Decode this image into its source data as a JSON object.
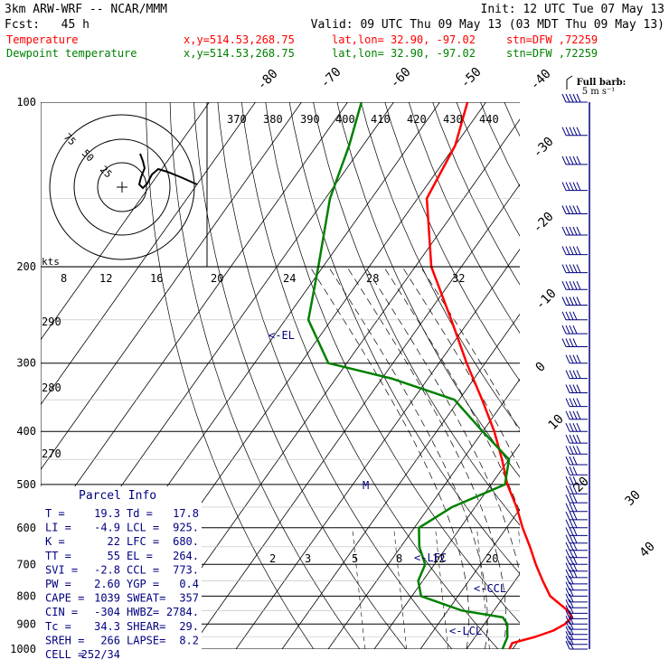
{
  "header": {
    "model": "3km ARW-WRF -- NCAR/MMM",
    "init": "Init: 12 UTC Tue 07 May 13",
    "fcst": "Fcst:   45 h",
    "valid": "Valid: 09 UTC Thu 09 May 13 (03 MDT Thu 09 May 13)",
    "temp_line": {
      "label": "Temperature",
      "xy": "x,y=514.53,268.75",
      "latlon": "lat,lon= 32.90, -97.02",
      "stn": "stn=DFW ,72259"
    },
    "dew_line": {
      "label": "Dewpoint temperature",
      "xy": "x,y=514.53,268.75",
      "latlon": "lat,lon= 32.90, -97.02",
      "stn": "stn=DFW ,72259"
    }
  },
  "barb_legend": {
    "line1": "Full barb:",
    "line2": "5 m s⁻¹"
  },
  "parcel_info": {
    "title": "Parcel Info",
    "rows": [
      [
        "T  =",
        "19.3",
        "Td =",
        "17.8"
      ],
      [
        "LI =",
        "-4.9",
        "LCL =",
        "925."
      ],
      [
        "K  =",
        "22",
        "LFC =",
        "680."
      ],
      [
        "TT =",
        "55",
        "EL  =",
        "264."
      ],
      [
        "SVI =",
        "-2.8",
        "CCL =",
        "773."
      ],
      [
        "PW =",
        "2.60",
        "YGP =",
        "0.4"
      ],
      [
        "CAPE =",
        "1039",
        "SWEAT=",
        "357"
      ],
      [
        "CIN =",
        "-304",
        "HWBZ=",
        "2784."
      ],
      [
        "Tc =",
        "34.3",
        "SHEAR=",
        "29."
      ],
      [
        "SREH =",
        "266",
        "LAPSE=",
        "8.2"
      ],
      [
        "CELL =",
        "252/34",
        "",
        ""
      ]
    ]
  },
  "hodograph": {
    "speed_unit": "kts",
    "ring_labels": [
      "25",
      "50",
      "75"
    ]
  },
  "colors": {
    "temperature": "#ff0000",
    "dewpoint": "#008000",
    "barbs": "#000080",
    "text": "#000000"
  },
  "chart_data": {
    "type": "skew-t",
    "pressure_ticks": [
      "100",
      "200",
      "300",
      "400",
      "500",
      "600",
      "700",
      "800",
      "900",
      "1000"
    ],
    "isotherm_labels": [
      "-80",
      "-70",
      "-60",
      "-50",
      "-40",
      "-30",
      "-20",
      "-10",
      "0",
      "10",
      "20",
      "30",
      "40"
    ],
    "theta_labels": [
      "370",
      "380",
      "390",
      "400",
      "410",
      "420",
      "430",
      "440"
    ],
    "theta_labels_left": [
      "290",
      "280",
      "270"
    ],
    "mixing_ratio_labels": [
      "8",
      "12",
      "16",
      "20",
      "24",
      "28",
      "32"
    ],
    "lower_mixing_ratio_labels": [
      "2",
      "3",
      "5",
      "8",
      "12",
      "20"
    ],
    "level_markers": [
      "<-EL",
      "<-LFC",
      "<-CCL",
      "<-LCL"
    ],
    "freezing_marker": "M",
    "series": [
      {
        "name": "Temperature",
        "points": [
          {
            "p": 1000,
            "t": 19.3
          },
          {
            "p": 975,
            "t": 19
          },
          {
            "p": 950,
            "t": 23
          },
          {
            "p": 925,
            "t": 26
          },
          {
            "p": 900,
            "t": 27.5
          },
          {
            "p": 875,
            "t": 28
          },
          {
            "p": 850,
            "t": 26
          },
          {
            "p": 800,
            "t": 20
          },
          {
            "p": 750,
            "t": 16
          },
          {
            "p": 700,
            "t": 12
          },
          {
            "p": 650,
            "t": 8
          },
          {
            "p": 600,
            "t": 3.5
          },
          {
            "p": 550,
            "t": -1
          },
          {
            "p": 500,
            "t": -6.5
          },
          {
            "p": 450,
            "t": -11.5
          },
          {
            "p": 400,
            "t": -17.5
          },
          {
            "p": 350,
            "t": -25
          },
          {
            "p": 300,
            "t": -34
          },
          {
            "p": 250,
            "t": -44
          },
          {
            "p": 200,
            "t": -56.5
          },
          {
            "p": 150,
            "t": -68
          },
          {
            "p": 120,
            "t": -70
          },
          {
            "p": 100,
            "t": -74
          }
        ]
      },
      {
        "name": "Dewpoint temperature",
        "points": [
          {
            "p": 1000,
            "t": 17.8
          },
          {
            "p": 950,
            "t": 17
          },
          {
            "p": 925,
            "t": 16
          },
          {
            "p": 900,
            "t": 15
          },
          {
            "p": 875,
            "t": 13
          },
          {
            "p": 850,
            "t": 3
          },
          {
            "p": 800,
            "t": -8
          },
          {
            "p": 750,
            "t": -11
          },
          {
            "p": 700,
            "t": -12
          },
          {
            "p": 650,
            "t": -16
          },
          {
            "p": 600,
            "t": -19
          },
          {
            "p": 550,
            "t": -15
          },
          {
            "p": 500,
            "t": -7
          },
          {
            "p": 450,
            "t": -10
          },
          {
            "p": 400,
            "t": -20
          },
          {
            "p": 350,
            "t": -31
          },
          {
            "p": 320,
            "t": -48
          },
          {
            "p": 300,
            "t": -64
          },
          {
            "p": 250,
            "t": -75
          },
          {
            "p": 200,
            "t": -81
          },
          {
            "p": 150,
            "t": -89
          },
          {
            "p": 120,
            "t": -93
          },
          {
            "p": 100,
            "t": -97
          }
        ]
      }
    ],
    "wind_barbs_pressure": [
      100,
      115,
      130,
      145,
      160,
      175,
      190,
      205,
      220,
      235,
      250,
      265,
      280,
      300,
      320,
      340,
      360,
      380,
      400,
      420,
      440,
      460,
      480,
      500,
      520,
      540,
      560,
      580,
      600,
      620,
      640,
      660,
      680,
      700,
      720,
      740,
      760,
      780,
      800,
      820,
      840,
      860,
      880,
      900,
      920,
      940,
      960,
      980,
      1000
    ]
  }
}
